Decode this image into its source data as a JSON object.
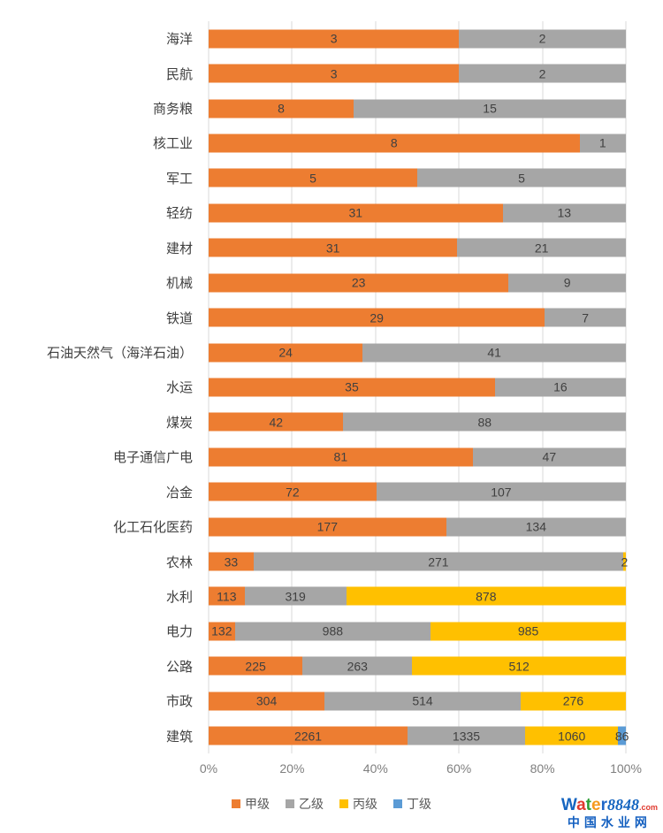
{
  "chart_data": {
    "type": "bar",
    "orientation": "horizontal",
    "stacked": "percent",
    "title": "",
    "xlabel": "",
    "ylabel": "",
    "xlim": [
      0,
      100
    ],
    "grid": "vertical",
    "gridline_color": "#D9D9D9",
    "legend_position": "bottom",
    "data_label_color": "#404040",
    "x_ticks": [
      "0%",
      "20%",
      "40%",
      "60%",
      "80%",
      "100%"
    ],
    "categories": [
      "海洋",
      "民航",
      "商务粮",
      "核工业",
      "军工",
      "轻纺",
      "建材",
      "机械",
      "铁道",
      "石油天然气（海洋石油）",
      "水运",
      "煤炭",
      "电子通信广电",
      "冶金",
      "化工石化医药",
      "农林",
      "水利",
      "电力",
      "公路",
      "市政",
      "建筑"
    ],
    "series": [
      {
        "name": "甲级",
        "color": "#ED7D31",
        "values": [
          3,
          3,
          8,
          8,
          5,
          31,
          31,
          23,
          29,
          24,
          35,
          42,
          81,
          72,
          177,
          33,
          113,
          132,
          225,
          304,
          2261
        ]
      },
      {
        "name": "乙级",
        "color": "#A6A6A6",
        "values": [
          2,
          2,
          15,
          1,
          5,
          13,
          21,
          9,
          7,
          41,
          16,
          88,
          47,
          107,
          134,
          271,
          319,
          988,
          263,
          514,
          1335
        ]
      },
      {
        "name": "丙级",
        "color": "#FFC000",
        "values": [
          0,
          0,
          0,
          0,
          0,
          0,
          0,
          0,
          0,
          0,
          0,
          0,
          0,
          0,
          0,
          2,
          878,
          985,
          512,
          276,
          1060
        ]
      },
      {
        "name": "丁级",
        "color": "#5B9BD5",
        "values": [
          0,
          0,
          0,
          0,
          0,
          0,
          0,
          0,
          0,
          0,
          0,
          0,
          0,
          0,
          0,
          0,
          0,
          0,
          0,
          0,
          86
        ]
      }
    ]
  },
  "watermark": {
    "word_letters": [
      {
        "ch": "W",
        "color": "#1565C0"
      },
      {
        "ch": "a",
        "color": "#E0392E"
      },
      {
        "ch": "t",
        "color": "#2E9E36"
      },
      {
        "ch": "e",
        "color": "#F59B1E"
      },
      {
        "ch": "r",
        "color": "#1E66C8"
      }
    ],
    "number": "8848",
    "number_color": "#1565C0",
    "domain_suffix": ".com",
    "suffix_color": "#E0392E",
    "subtitle": "中国水业网",
    "subtitle_color": "#1460C0"
  }
}
